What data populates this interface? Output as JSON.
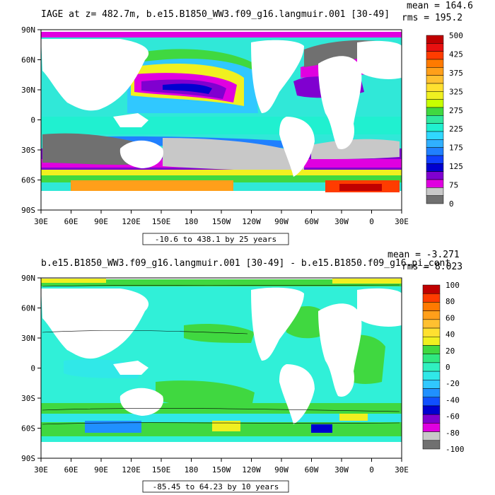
{
  "chart_data": [
    {
      "type": "heatmap",
      "title": "IAGE at z= 482.7m, b.e15.B1850_WW3.f09_g16.langmuir.001 [30-49]",
      "stats": [
        "mean = 164.6",
        "rms = 195.2"
      ],
      "range_note": "-10.6 to 438.1 by 25 years",
      "x_ticks": [
        "30E",
        "60E",
        "90E",
        "120E",
        "150E",
        "180",
        "150W",
        "120W",
        "90W",
        "60W",
        "30W",
        "0",
        "30E"
      ],
      "y_ticks": [
        "90N",
        "60N",
        "30N",
        "0",
        "30S",
        "60S",
        "90S"
      ],
      "legend_labels": [
        "500",
        "425",
        "375",
        "325",
        "275",
        "225",
        "175",
        "125",
        "75",
        "0"
      ],
      "legend_colors": [
        "#c00000",
        "#e81010",
        "#ff3c00",
        "#ff7a00",
        "#ff9f1a",
        "#ffc030",
        "#ffe030",
        "#f0f020",
        "#c8ff00",
        "#40d840",
        "#30e8a0",
        "#20f0d0",
        "#30d8ff",
        "#30b0ff",
        "#2080ff",
        "#1040ff",
        "#0000d0",
        "#8000d0",
        "#e000e0",
        "#c8c8c8",
        "#707070"
      ]
    },
    {
      "type": "heatmap",
      "title": "b.e15.B1850_WW3.f09_g16.langmuir.001 [30-49] - b.e15.B1850.f09_g16.pi_cont",
      "stats": [
        "mean = -3.271",
        "rms = 8.023"
      ],
      "range_note": "-85.45 to 64.23 by 10 years",
      "x_ticks": [
        "30E",
        "60E",
        "90E",
        "120E",
        "150E",
        "180",
        "150W",
        "120W",
        "90W",
        "60W",
        "30W",
        "0",
        "30E"
      ],
      "y_ticks": [
        "90N",
        "60N",
        "30N",
        "0",
        "30S",
        "60S",
        "90S"
      ],
      "legend_labels": [
        "100",
        "80",
        "60",
        "40",
        "20",
        "0",
        "-20",
        "-40",
        "-60",
        "-80",
        "-100"
      ],
      "legend_colors": [
        "#c00000",
        "#ff3c00",
        "#ff7a00",
        "#ff9f1a",
        "#ffc030",
        "#ffe030",
        "#f0f020",
        "#40d840",
        "#30e880",
        "#30f0c0",
        "#30e8e8",
        "#30c8ff",
        "#2090ff",
        "#1050ff",
        "#0000d0",
        "#8000d0",
        "#e000e0",
        "#c8c8c8",
        "#707070"
      ]
    }
  ]
}
